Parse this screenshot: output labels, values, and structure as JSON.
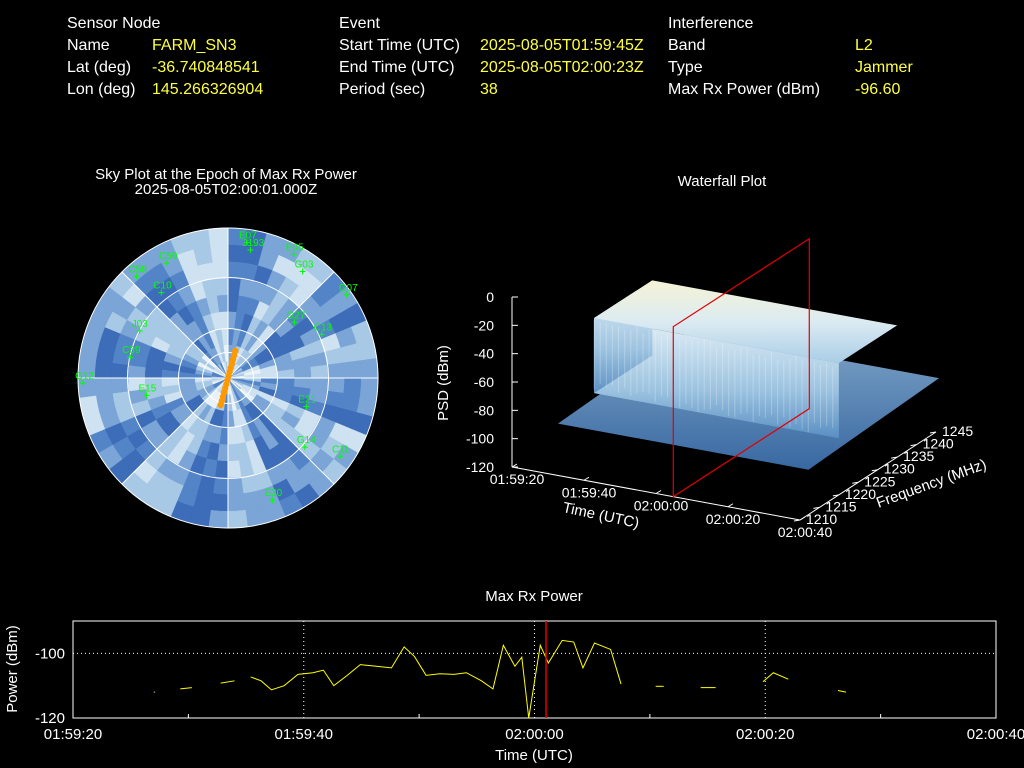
{
  "info": {
    "sensor": {
      "heading": "Sensor Node",
      "rows": [
        {
          "label": "Name",
          "value": "FARM_SN3"
        },
        {
          "label": "Lat (deg)",
          "value": "-36.740848541"
        },
        {
          "label": "Lon (deg)",
          "value": "145.266326904"
        }
      ]
    },
    "event": {
      "heading": "Event",
      "rows": [
        {
          "label": "Start Time (UTC)",
          "value": "2025-08-05T01:59:45Z"
        },
        {
          "label": "End Time (UTC)",
          "value": "2025-08-05T02:00:23Z"
        },
        {
          "label": "Period (sec)",
          "value": "38"
        }
      ]
    },
    "interference": {
      "heading": "Interference",
      "rows": [
        {
          "label": "Band",
          "value": "L2"
        },
        {
          "label": "Type",
          "value": "Jammer"
        },
        {
          "label": "Max Rx Power (dBm)",
          "value": "-96.60"
        }
      ]
    }
  },
  "colors": {
    "label": "#ffffff",
    "value": "#ffff40",
    "satellite": "#00ff00",
    "direction": "#ff9900",
    "marker": "#e00000",
    "trace": "#ffff00"
  },
  "chart_data": [
    {
      "type": "polar-heatmap",
      "title": "Sky Plot at the Epoch of Max Rx Power",
      "subtitle": "2025-08-05T02:00:01.000Z",
      "satellites": [
        {
          "id": "C59",
          "az": 332,
          "el": 12
        },
        {
          "id": "E07",
          "az": 8,
          "el": 8
        },
        {
          "id": "J193",
          "az": 10,
          "el": 12
        },
        {
          "id": "E05",
          "az": 28,
          "el": 6
        },
        {
          "id": "G03",
          "az": 35,
          "el": 12
        },
        {
          "id": "G07",
          "az": 55,
          "el": 3
        },
        {
          "id": "C58",
          "az": 318,
          "el": 8
        },
        {
          "id": "C10",
          "az": 322,
          "el": 25
        },
        {
          "id": "G27",
          "az": 50,
          "el": 38
        },
        {
          "id": "C13",
          "az": 65,
          "el": 28
        },
        {
          "id": "J03",
          "az": 298,
          "el": 30
        },
        {
          "id": "C39",
          "az": 282,
          "el": 30
        },
        {
          "id": "G12",
          "az": 268,
          "el": 3
        },
        {
          "id": "E15",
          "az": 258,
          "el": 40
        },
        {
          "id": "E30",
          "az": 160,
          "el": 12
        },
        {
          "id": "G14",
          "az": 132,
          "el": 28
        },
        {
          "id": "C11",
          "az": 125,
          "el": 8
        },
        {
          "id": "E21",
          "az": 110,
          "el": 40
        }
      ],
      "jammer_direction_deg": [
        15,
        195
      ]
    },
    {
      "type": "surface-3d",
      "title": "Waterfall Plot",
      "xlabel": "Time (UTC)",
      "ylabel": "Frequency (MHz)",
      "zlabel": "PSD (dBm)",
      "time_ticks": [
        "01:59:20",
        "01:59:40",
        "02:00:00",
        "02:00:20",
        "02:00:40"
      ],
      "freq_ticks": [
        1210,
        1215,
        1220,
        1225,
        1230,
        1235,
        1240,
        1245
      ],
      "psd_ticks": [
        0,
        -20,
        -40,
        -60,
        -80,
        -100,
        -120
      ],
      "freq_range": [
        1210,
        1245
      ],
      "psd_range": [
        -120,
        0
      ],
      "jammer_band_mhz": [
        1220,
        1235
      ],
      "jammer_psd_dbm": -27,
      "floor_psd_dbm": -80,
      "marker_time": "02:00:01"
    },
    {
      "type": "line",
      "title": "Max Rx Power",
      "xlabel": "Time (UTC)",
      "ylabel": "Power (dBm)",
      "x_ticks": [
        "01:59:20",
        "01:59:40",
        "02:00:00",
        "02:00:20",
        "02:00:40"
      ],
      "y_ticks": [
        -100,
        -120
      ],
      "xlim": [
        0,
        80
      ],
      "ylim": [
        -120,
        -90
      ],
      "marker_x": 41,
      "segments": [
        [
          [
            7,
            -112
          ],
          [
            7.1,
            -112
          ]
        ],
        [
          [
            9.3,
            -111
          ],
          [
            10.3,
            -110.6
          ]
        ],
        [
          [
            12.8,
            -109.2
          ],
          [
            14,
            -108.5
          ]
        ],
        [
          [
            15.4,
            -107.3
          ],
          [
            16.3,
            -108.5
          ],
          [
            17.2,
            -111.3
          ],
          [
            18.3,
            -110
          ],
          [
            19.5,
            -106.5
          ],
          [
            20.8,
            -106
          ],
          [
            21.7,
            -105.2
          ],
          [
            22.6,
            -110
          ],
          [
            23.7,
            -107
          ],
          [
            24.9,
            -103.5
          ],
          [
            26.3,
            -104
          ],
          [
            27.6,
            -104.5
          ],
          [
            28.7,
            -98
          ],
          [
            29.6,
            -101
          ],
          [
            30.6,
            -106.8
          ],
          [
            31.8,
            -106.3
          ],
          [
            33,
            -106.5
          ],
          [
            34.1,
            -106
          ],
          [
            35.4,
            -108.5
          ],
          [
            36.4,
            -111
          ],
          [
            37.3,
            -97.5
          ],
          [
            38.3,
            -104
          ],
          [
            38.9,
            -101.2
          ],
          [
            39.5,
            -120
          ],
          [
            40.5,
            -97.5
          ],
          [
            41.2,
            -103
          ],
          [
            42.4,
            -96
          ],
          [
            43.4,
            -96.5
          ],
          [
            44.2,
            -104.5
          ],
          [
            45.2,
            -96.8
          ],
          [
            46.6,
            -98.8
          ],
          [
            47.5,
            -109.5
          ]
        ],
        [
          [
            50.5,
            -110.2
          ],
          [
            51.2,
            -110.2
          ]
        ],
        [
          [
            54.4,
            -110.6
          ],
          [
            55.7,
            -110.6
          ]
        ],
        [
          [
            59.8,
            -108.8
          ],
          [
            60.7,
            -106
          ],
          [
            62,
            -108
          ]
        ],
        [
          [
            66.3,
            -111.5
          ],
          [
            67,
            -112
          ]
        ]
      ]
    }
  ]
}
